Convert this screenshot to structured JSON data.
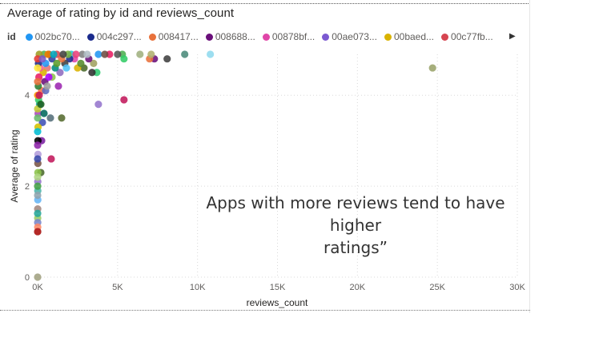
{
  "chart_data": {
    "type": "scatter",
    "title": "Average of rating by id and reviews_count",
    "xlabel": "reviews_count",
    "ylabel": "Average of rating",
    "xlim": [
      0,
      30000
    ],
    "ylim": [
      0,
      4.9
    ],
    "x_ticks": [
      "0K",
      "5K",
      "10K",
      "15K",
      "20K",
      "25K",
      "30K"
    ],
    "x_tick_values": [
      0,
      5000,
      10000,
      15000,
      20000,
      25000,
      30000
    ],
    "y_ticks": [
      "0",
      "2",
      "4"
    ],
    "y_tick_values": [
      0,
      2,
      4
    ],
    "grid": true,
    "legend": {
      "title": "id",
      "placement": "top",
      "entries": [
        {
          "name": "002bc70...",
          "color": "#2196f3"
        },
        {
          "name": "004c297...",
          "color": "#1a2a8c"
        },
        {
          "name": "008417...",
          "color": "#e8713b"
        },
        {
          "name": "008688...",
          "color": "#6a0f7a"
        },
        {
          "name": "00878bf...",
          "color": "#e046a8"
        },
        {
          "name": "00ae073...",
          "color": "#7b59d1"
        },
        {
          "name": "00baed...",
          "color": "#d9b300"
        },
        {
          "name": "00c77fb...",
          "color": "#d64550"
        }
      ]
    },
    "points": [
      {
        "x": 24700,
        "y": 4.6,
        "color": "#9aa36a"
      },
      {
        "x": 10800,
        "y": 4.9,
        "color": "#8fd9ee"
      },
      {
        "x": 9200,
        "y": 4.9,
        "color": "#4a8a7a"
      },
      {
        "x": 8100,
        "y": 4.8,
        "color": "#404040"
      },
      {
        "x": 7300,
        "y": 4.8,
        "color": "#6a0f7a"
      },
      {
        "x": 7000,
        "y": 4.8,
        "color": "#e8713b"
      },
      {
        "x": 7100,
        "y": 4.9,
        "color": "#b0b070"
      },
      {
        "x": 6400,
        "y": 4.9,
        "color": "#a0b080"
      },
      {
        "x": 5400,
        "y": 3.9,
        "color": "#c2185b"
      },
      {
        "x": 5300,
        "y": 4.9,
        "color": "#4caf50"
      },
      {
        "x": 5000,
        "y": 4.9,
        "color": "#555555"
      },
      {
        "x": 5400,
        "y": 4.8,
        "color": "#33cc66"
      },
      {
        "x": 4500,
        "y": 4.9,
        "color": "#e91e63"
      },
      {
        "x": 3800,
        "y": 3.8,
        "color": "#9575cd"
      },
      {
        "x": 3700,
        "y": 4.5,
        "color": "#2ecc71"
      },
      {
        "x": 3500,
        "y": 4.7,
        "color": "#a0a060"
      },
      {
        "x": 3400,
        "y": 4.5,
        "color": "#303030"
      },
      {
        "x": 3200,
        "y": 4.8,
        "color": "#6a0f7a"
      },
      {
        "x": 3800,
        "y": 4.9,
        "color": "#2196f3"
      },
      {
        "x": 2800,
        "y": 4.9,
        "color": "#808080"
      },
      {
        "x": 2900,
        "y": 4.6,
        "color": "#4a6a2a"
      },
      {
        "x": 2500,
        "y": 4.6,
        "color": "#d9b300"
      },
      {
        "x": 2300,
        "y": 4.8,
        "color": "#e046a8"
      },
      {
        "x": 2100,
        "y": 4.9,
        "color": "#26c6da"
      },
      {
        "x": 2000,
        "y": 4.8,
        "color": "#1a2a8c"
      },
      {
        "x": 1900,
        "y": 4.9,
        "color": "#7cb342"
      },
      {
        "x": 1700,
        "y": 4.7,
        "color": "#404040"
      },
      {
        "x": 1500,
        "y": 4.8,
        "color": "#e8713b"
      },
      {
        "x": 1500,
        "y": 3.5,
        "color": "#556b2f"
      },
      {
        "x": 1400,
        "y": 4.5,
        "color": "#8e6bbf"
      },
      {
        "x": 1300,
        "y": 4.2,
        "color": "#9c27b0"
      },
      {
        "x": 1200,
        "y": 4.9,
        "color": "#d64550"
      },
      {
        "x": 1100,
        "y": 4.6,
        "color": "#00897b"
      },
      {
        "x": 900,
        "y": 4.8,
        "color": "#303f9f"
      },
      {
        "x": 900,
        "y": 4.4,
        "color": "#8bc34a"
      },
      {
        "x": 800,
        "y": 3.5,
        "color": "#546e7a"
      },
      {
        "x": 850,
        "y": 2.6,
        "color": "#c2185b"
      },
      {
        "x": 700,
        "y": 4.9,
        "color": "#5d4037"
      },
      {
        "x": 600,
        "y": 4.6,
        "color": "#e57373"
      },
      {
        "x": 500,
        "y": 4.7,
        "color": "#2196f3"
      },
      {
        "x": 450,
        "y": 4.3,
        "color": "#6a0f7a"
      },
      {
        "x": 400,
        "y": 4.9,
        "color": "#4caf50"
      },
      {
        "x": 350,
        "y": 4.5,
        "color": "#d9b300"
      },
      {
        "x": 300,
        "y": 3.4,
        "color": "#3f51b5"
      },
      {
        "x": 250,
        "y": 4.1,
        "color": "#ff7043"
      },
      {
        "x": 250,
        "y": 3.0,
        "color": "#7b1fa2"
      },
      {
        "x": 200,
        "y": 2.3,
        "color": "#4a6a2a"
      },
      {
        "x": 150,
        "y": 4.6,
        "color": "#f06292"
      },
      {
        "x": 120,
        "y": 3.8,
        "color": "#26a69a"
      },
      {
        "x": 100,
        "y": 4.9,
        "color": "#9e9d24"
      },
      {
        "x": 80,
        "y": 4.4,
        "color": "#e91e63"
      },
      {
        "x": 60,
        "y": 3.9,
        "color": "#33cc66"
      },
      {
        "x": 50,
        "y": 4.7,
        "color": "#1a2a8c"
      },
      {
        "x": 40,
        "y": 4.2,
        "color": "#2e7d32"
      },
      {
        "x": 30,
        "y": 3.6,
        "color": "#ab47bc"
      },
      {
        "x": 25,
        "y": 3.3,
        "color": "#d4c200"
      },
      {
        "x": 20,
        "y": 3.0,
        "color": "#000000"
      },
      {
        "x": 20,
        "y": 2.7,
        "color": "#b39ddb"
      },
      {
        "x": 15,
        "y": 2.5,
        "color": "#795548"
      },
      {
        "x": 15,
        "y": 2.3,
        "color": "#8bc34a"
      },
      {
        "x": 10,
        "y": 2.1,
        "color": "#9575cd"
      },
      {
        "x": 10,
        "y": 1.9,
        "color": "#4db6ac"
      },
      {
        "x": 10,
        "y": 1.7,
        "color": "#64b5f6"
      },
      {
        "x": 5,
        "y": 1.5,
        "color": "#a1887f"
      },
      {
        "x": 5,
        "y": 1.3,
        "color": "#9ccc65"
      },
      {
        "x": 5,
        "y": 1.2,
        "color": "#7986cb"
      },
      {
        "x": 5,
        "y": 1.1,
        "color": "#ff8a65"
      },
      {
        "x": 3,
        "y": 1.0,
        "color": "#8d6e63"
      },
      {
        "x": 2,
        "y": 1.0,
        "color": "#b71c1c"
      },
      {
        "x": 1,
        "y": 0,
        "color": "#a0a080"
      },
      {
        "x": 0,
        "y": 4.6,
        "color": "#ffeb3b"
      },
      {
        "x": 0,
        "y": 4.3,
        "color": "#e8713b"
      },
      {
        "x": 0,
        "y": 3.7,
        "color": "#c0ca33"
      },
      {
        "x": 0,
        "y": 3.2,
        "color": "#00bcd4"
      },
      {
        "x": 0,
        "y": 2.9,
        "color": "#8e24aa"
      },
      {
        "x": 0,
        "y": 2.0,
        "color": "#43a047"
      },
      {
        "x": 0,
        "y": 1.8,
        "color": "#90a4ae"
      },
      {
        "x": 0,
        "y": 1.4,
        "color": "#26a69a"
      },
      {
        "x": 0,
        "y": 3.5,
        "color": "#66bb6a"
      },
      {
        "x": 0,
        "y": 4.8,
        "color": "#e53935"
      },
      {
        "x": 0,
        "y": 4.0,
        "color": "#ff9800"
      },
      {
        "x": 0,
        "y": 2.6,
        "color": "#3949ab"
      },
      {
        "x": 0,
        "y": 2.2,
        "color": "#aed581"
      },
      {
        "x": 100,
        "y": 4.0,
        "color": "#c2185b"
      },
      {
        "x": 200,
        "y": 3.8,
        "color": "#1b5e20"
      },
      {
        "x": 300,
        "y": 4.8,
        "color": "#7e57c2"
      },
      {
        "x": 500,
        "y": 4.1,
        "color": "#5c6bc0"
      },
      {
        "x": 650,
        "y": 4.9,
        "color": "#f57c00"
      },
      {
        "x": 1000,
        "y": 4.9,
        "color": "#00acc1"
      },
      {
        "x": 1600,
        "y": 4.9,
        "color": "#424242"
      },
      {
        "x": 2400,
        "y": 4.9,
        "color": "#ec407a"
      },
      {
        "x": 2700,
        "y": 4.7,
        "color": "#558b2f"
      },
      {
        "x": 3100,
        "y": 4.9,
        "color": "#b0bec5"
      },
      {
        "x": 4200,
        "y": 4.9,
        "color": "#6d4c41"
      },
      {
        "x": 1800,
        "y": 4.6,
        "color": "#4fc3f7"
      },
      {
        "x": 600,
        "y": 4.2,
        "color": "#9e9e9e"
      },
      {
        "x": 400,
        "y": 3.6,
        "color": "#00695c"
      },
      {
        "x": 700,
        "y": 4.4,
        "color": "#aa00ff"
      },
      {
        "x": 1200,
        "y": 4.7,
        "color": "#5d9c2a"
      }
    ]
  },
  "annotation": {
    "line1": "Apps with more reviews tend to have higher",
    "line2": "ratings”"
  },
  "legend_next_glyph": "▶"
}
